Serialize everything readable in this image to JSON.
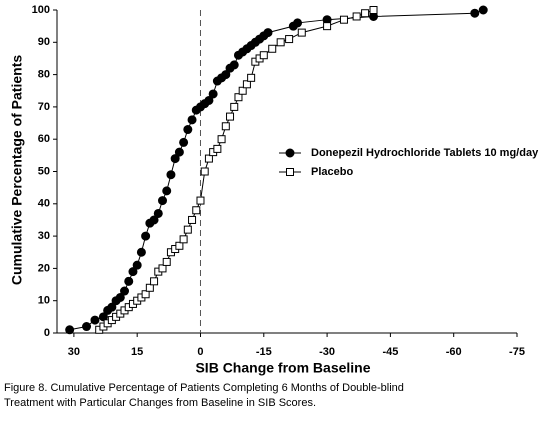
{
  "chart_data": {
    "type": "line",
    "ylabel": "Cumulative Percentage of Patients",
    "xlabel": "SIB Change from Baseline",
    "caption": [
      "Figure 8. Cumulative Percentage of Patients Completing 6 Months of Double-blind",
      "Treatment with Particular Changes from Baseline in SIB Scores."
    ],
    "xlim": [
      34,
      -75
    ],
    "xticks": [
      30,
      15,
      0,
      -15,
      -30,
      -45,
      -60,
      -75
    ],
    "ylim": [
      0,
      100
    ],
    "yticks": [
      0,
      10,
      20,
      30,
      40,
      50,
      60,
      70,
      80,
      90,
      100
    ],
    "reference_x": 0,
    "legend": "right",
    "series": [
      {
        "name": "Donepezil Hydrochloride Tablets 10 mg/day",
        "color": "#000000",
        "marker": "circle",
        "marker_fill": "#000000",
        "x": [
          31,
          27,
          25,
          23,
          22,
          21,
          20,
          19,
          18,
          17,
          16,
          15,
          14,
          13,
          12,
          11,
          10,
          9,
          8,
          7,
          6,
          5,
          4,
          3,
          2,
          1,
          0,
          -1,
          -2,
          -3,
          -4,
          -5,
          -6,
          -7,
          -8,
          -9,
          -10,
          -11,
          -12,
          -13,
          -14,
          -15,
          -16,
          -22,
          -23,
          -30,
          -41,
          -65,
          -67
        ],
        "values": [
          1,
          2,
          4,
          5,
          7,
          8,
          10,
          11,
          13,
          16,
          19,
          21,
          25,
          30,
          34,
          35,
          37,
          41,
          44,
          49,
          54,
          56,
          59,
          63,
          66,
          69,
          70,
          71,
          72,
          74,
          78,
          79,
          80,
          82,
          83,
          86,
          87,
          88,
          89,
          90,
          91,
          92,
          93,
          95,
          96,
          97,
          98,
          99,
          100
        ]
      },
      {
        "name": "Placebo",
        "color": "#000000",
        "marker": "square",
        "marker_fill": "#ffffff",
        "x": [
          24,
          23,
          22,
          21,
          20,
          19,
          18,
          17,
          16,
          15,
          14,
          13,
          12,
          11,
          10,
          9,
          8,
          7,
          6,
          5,
          4,
          3,
          2,
          1,
          0,
          -1,
          -2,
          -3,
          -4,
          -5,
          -6,
          -7,
          -8,
          -9,
          -10,
          -11,
          -12,
          -13,
          -14,
          -15,
          -17,
          -19,
          -21,
          -24,
          -30,
          -34,
          -37,
          -39,
          -41
        ],
        "values": [
          1,
          2,
          3,
          4,
          5,
          6,
          7,
          8,
          9,
          10,
          11,
          12,
          14,
          16,
          19,
          20,
          22,
          25,
          26,
          27,
          29,
          32,
          35,
          38,
          41,
          50,
          54,
          56,
          57,
          60,
          64,
          67,
          70,
          73,
          75,
          77,
          79,
          84,
          85,
          86,
          88,
          90,
          91,
          93,
          95,
          97,
          98,
          99,
          100
        ]
      }
    ]
  }
}
